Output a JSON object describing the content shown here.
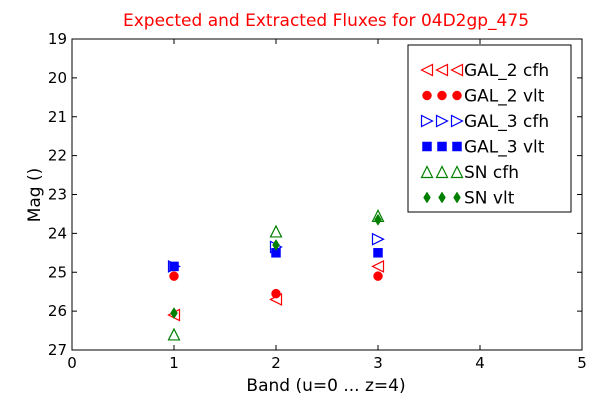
{
  "chart_data": {
    "type": "scatter",
    "title": "Expected and Extracted Fluxes for 04D2gp_475",
    "xlabel": "Band (u=0 ... z=4)",
    "ylabel": "Mag ()",
    "xlim": [
      0,
      5
    ],
    "ylim": [
      27,
      19
    ],
    "y_inverted": true,
    "x_ticks": [
      0,
      1,
      2,
      3,
      4,
      5
    ],
    "y_ticks": [
      19,
      20,
      21,
      22,
      23,
      24,
      25,
      26,
      27
    ],
    "x_tick_labels": [
      "0",
      "1",
      "2",
      "3",
      "4",
      "5"
    ],
    "y_tick_labels": [
      "19",
      "20",
      "21",
      "22",
      "23",
      "24",
      "25",
      "26",
      "27"
    ],
    "grid": false,
    "legend_position": "top-right",
    "series": [
      {
        "name": "GAL_2 cfh",
        "marker": "triangle-left-open",
        "color": "#ff0000",
        "points": [
          {
            "x": 1,
            "y": 26.1
          },
          {
            "x": 2,
            "y": 25.7
          },
          {
            "x": 3,
            "y": 24.85
          }
        ]
      },
      {
        "name": "GAL_2 vlt",
        "marker": "circle-filled",
        "color": "#ff0000",
        "points": [
          {
            "x": 1,
            "y": 25.1
          },
          {
            "x": 2,
            "y": 25.55
          },
          {
            "x": 3,
            "y": 25.1
          }
        ]
      },
      {
        "name": "GAL_3 cfh",
        "marker": "triangle-right-open",
        "color": "#0000ff",
        "points": [
          {
            "x": 1,
            "y": 24.85
          },
          {
            "x": 2,
            "y": 24.35
          },
          {
            "x": 3,
            "y": 24.15
          }
        ]
      },
      {
        "name": "GAL_3 vlt",
        "marker": "square-filled",
        "color": "#0000ff",
        "points": [
          {
            "x": 1,
            "y": 24.85
          },
          {
            "x": 2,
            "y": 24.5
          },
          {
            "x": 3,
            "y": 24.5
          }
        ]
      },
      {
        "name": "SN cfh",
        "marker": "triangle-up-open",
        "color": "#008000",
        "points": [
          {
            "x": 1,
            "y": 26.6
          },
          {
            "x": 2,
            "y": 23.95
          },
          {
            "x": 3,
            "y": 23.55
          }
        ]
      },
      {
        "name": "SN vlt",
        "marker": "diamond-filled",
        "color": "#008000",
        "points": [
          {
            "x": 1,
            "y": 26.05
          },
          {
            "x": 2,
            "y": 24.3
          },
          {
            "x": 3,
            "y": 23.65
          }
        ]
      }
    ]
  }
}
